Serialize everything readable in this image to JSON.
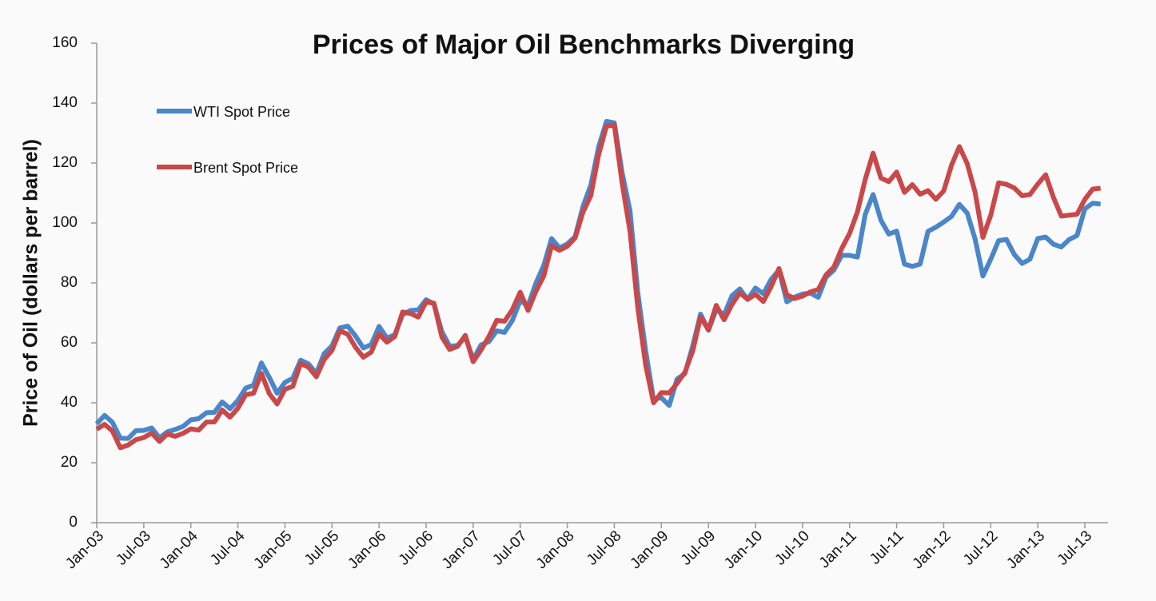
{
  "chart_data": {
    "type": "line",
    "title": "Prices of Major Oil Benchmarks Diverging",
    "y_label": "Price of Oil (dollars per barrel)",
    "categories": [
      "Jan-03",
      null,
      null,
      null,
      null,
      null,
      "Jul-03",
      null,
      null,
      null,
      null,
      null,
      "Jan-04",
      null,
      null,
      null,
      null,
      null,
      "Jul-04",
      null,
      null,
      null,
      null,
      null,
      "Jan-05",
      null,
      null,
      null,
      null,
      null,
      "Jul-05",
      null,
      null,
      null,
      null,
      null,
      "Jan-06",
      null,
      null,
      null,
      null,
      null,
      "Jul-06",
      null,
      null,
      null,
      null,
      null,
      "Jan-07",
      null,
      null,
      null,
      null,
      null,
      "Jul-07",
      null,
      null,
      null,
      null,
      null,
      "Jan-08",
      null,
      null,
      null,
      null,
      null,
      "Jul-08",
      null,
      null,
      null,
      null,
      null,
      "Jan-09",
      null,
      null,
      null,
      null,
      null,
      "Jul-09",
      null,
      null,
      null,
      null,
      null,
      "Jan-10",
      null,
      null,
      null,
      null,
      null,
      "Jul-10",
      null,
      null,
      null,
      null,
      null,
      "Jan-11",
      null,
      null,
      null,
      null,
      null,
      "Jul-11",
      null,
      null,
      null,
      null,
      null,
      "Jan-12",
      null,
      null,
      null,
      null,
      null,
      "Jul-12",
      null,
      null,
      null,
      null,
      null,
      "Jan-13",
      null,
      null,
      null,
      null,
      null,
      "Jul-13",
      null,
      null
    ],
    "series": [
      {
        "name": "WTI Spot Price",
        "color": "#4a86c8",
        "values": [
          33,
          35.8,
          33.5,
          28.2,
          28.1,
          30.7,
          30.8,
          31.6,
          28.3,
          30.3,
          31.1,
          32.1,
          34.3,
          34.7,
          36.7,
          36.8,
          40.3,
          38,
          40.8,
          44.9,
          45.9,
          53.3,
          48.5,
          43.2,
          46.8,
          48.2,
          54.2,
          53,
          49.8,
          56.4,
          59,
          65,
          65.6,
          62.3,
          58.3,
          59.4,
          65.5,
          61.6,
          62.7,
          69.4,
          70.8,
          71,
          74.4,
          73,
          63.8,
          58.9,
          59.1,
          62,
          54.5,
          59.3,
          60.4,
          64,
          63.5,
          67.5,
          74.1,
          72.4,
          79.9,
          85.8,
          94.8,
          91.7,
          93,
          95.4,
          105.5,
          112.6,
          125.4,
          133.9,
          133.4,
          116.7,
          104.1,
          76.6,
          57.3,
          41.1,
          41.7,
          39.1,
          47.9,
          49.7,
          59,
          69.6,
          64.2,
          71.1,
          69.4,
          75.7,
          78,
          74.5,
          78.3,
          76.4,
          81.2,
          84.3,
          73.7,
          75.3,
          76.3,
          76.6,
          75.2,
          81.9,
          84.3,
          89.2,
          89.2,
          88.6,
          102.9,
          109.5,
          100.9,
          96.3,
          97.3,
          86.3,
          85.5,
          86.3,
          97.2,
          98.6,
          100.3,
          102.2,
          106.2,
          103.3,
          94.7,
          82.3,
          87.9,
          94.1,
          94.5,
          89.5,
          86.5,
          87.9,
          94.8,
          95.3,
          92.9,
          92,
          94.5,
          95.8,
          104.7,
          106.6,
          106.3
        ]
      },
      {
        "name": "Brent Spot Price",
        "color": "#c9484a",
        "values": [
          31.2,
          32.8,
          30.6,
          25,
          25.9,
          27.7,
          28.4,
          29.9,
          27.1,
          29.6,
          28.8,
          29.8,
          31.3,
          30.9,
          33.6,
          33.6,
          37.6,
          35.2,
          38.2,
          42.7,
          43.2,
          49.8,
          43.1,
          39.6,
          44.5,
          45.5,
          53.1,
          51.9,
          48.7,
          54.4,
          57.5,
          64,
          62.9,
          58.5,
          55.2,
          56.9,
          63,
          60.2,
          62.1,
          70.3,
          69.8,
          68.6,
          73.7,
          73.2,
          62,
          57.8,
          58.8,
          62.5,
          53.7,
          57.6,
          62.1,
          67.5,
          67.2,
          71.1,
          76.9,
          70.8,
          77.2,
          82.3,
          92.4,
          90.9,
          92.2,
          95,
          103.6,
          109.1,
          122.8,
          132.3,
          132.7,
          113.2,
          97.2,
          71.6,
          52.5,
          40,
          43.4,
          43.3,
          46.5,
          50.2,
          57.3,
          68.6,
          64.4,
          72.5,
          67.7,
          72.8,
          76.7,
          74.5,
          76.2,
          73.8,
          78.8,
          84.8,
          76,
          74.8,
          75.6,
          77,
          77.8,
          82.7,
          85.3,
          91.5,
          96.5,
          103.7,
          114.6,
          123.3,
          115,
          113.8,
          117,
          110.2,
          112.8,
          109.6,
          110.8,
          107.9,
          110.7,
          119.3,
          125.5,
          119.8,
          110.3,
          95.2,
          102.6,
          113.4,
          112.9,
          111.7,
          109.1,
          109.5,
          113,
          116.1,
          108.5,
          102.3,
          102.6,
          102.9,
          107.9,
          111.3,
          111.6
        ]
      }
    ],
    "ylim": [
      0,
      160
    ],
    "yticks": [
      0,
      20,
      40,
      60,
      80,
      100,
      120,
      140,
      160
    ],
    "grid": false,
    "legend": "upper left"
  }
}
